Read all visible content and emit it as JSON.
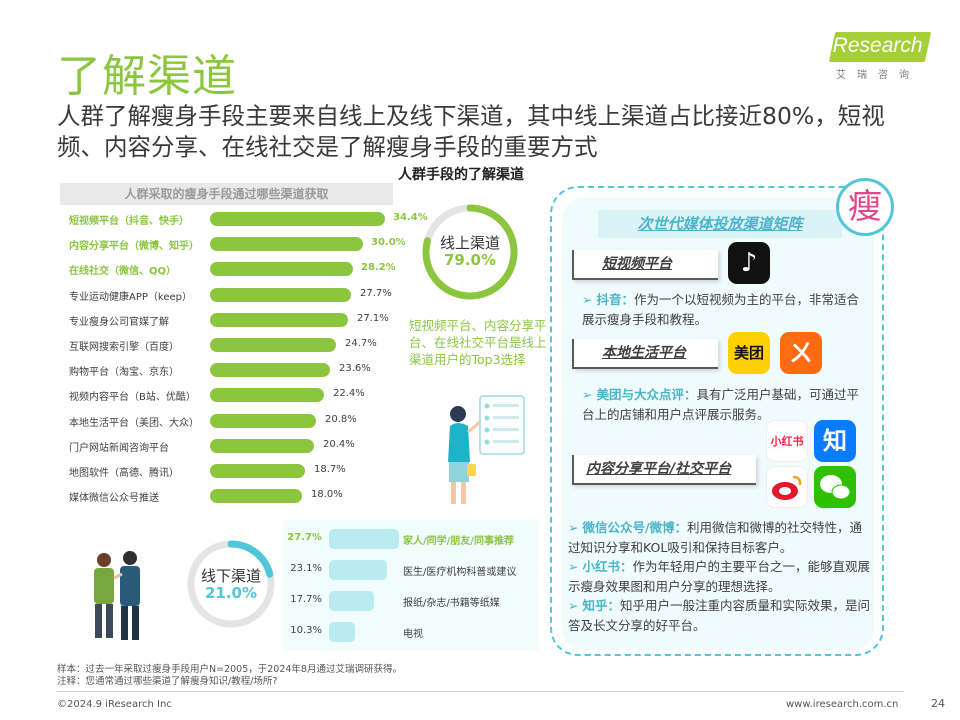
{
  "title": "了解渠道",
  "subtitle": "人群了解瘦身手段主要来自线上及线下渠道，其中线上渠道占比接近80%，短视频、内容分享、在线社交是了解瘦身手段的重要方式",
  "logo": {
    "text": "iResearch",
    "cn": "艾瑞咨询"
  },
  "chart_data": [
    {
      "type": "bar",
      "title": "人群采取的瘦身手段通过哪些渠道获取",
      "categories": [
        "短视频平台（抖音、快手）",
        "内容分享平台（微博、知乎）",
        "在线社交（微信、QQ）",
        "专业运动健康APP（keep）",
        "专业瘦身公司官媒了解",
        "互联网搜索引擎（百度）",
        "购物平台（淘宝、京东）",
        "视频内容平台（B站、优酷）",
        "本地生活平台（美团、大众）",
        "门户网站新闻咨询平台",
        "地图软件（高德、腾讯）",
        "媒体微信公众号推送"
      ],
      "values": [
        34.4,
        30.0,
        28.2,
        27.7,
        27.1,
        24.7,
        23.6,
        22.4,
        20.8,
        20.4,
        18.7,
        18.0
      ],
      "value_labels": [
        "34.4%",
        "30.0%",
        "28.2%",
        "27.7%",
        "27.1%",
        "24.7%",
        "23.6%",
        "22.4%",
        "20.8%",
        "20.4%",
        "18.7%",
        "18.0%"
      ],
      "highlighted": [
        0,
        1,
        2
      ],
      "unit": "%",
      "bar_color": "#8cc63f"
    },
    {
      "type": "bar",
      "categories": [
        "家人/同学/朋友/同事推荐",
        "医生/医疗机构科普或建议",
        "报纸/杂志/书籍等纸媒",
        "电视"
      ],
      "values": [
        27.7,
        23.1,
        17.7,
        10.3
      ],
      "value_labels": [
        "27.7%",
        "23.1%",
        "17.7%",
        "10.3%"
      ],
      "highlighted": [
        0
      ],
      "unit": "%",
      "bar_color": "#b9ebf0"
    },
    {
      "type": "pie",
      "title": "人群手段的了解渠道",
      "categories": [
        "线上渠道",
        "线下渠道"
      ],
      "values": [
        79.0,
        21.0
      ],
      "value_labels": [
        "79.0%",
        "21.0%"
      ]
    }
  ],
  "center": {
    "title": "人群手段的了解渠道",
    "online_label": "线上渠道",
    "online_pct": "79.0%",
    "offline_label": "线下渠道",
    "offline_pct": "21.0%",
    "note": "短视频平台、内容分享平台、在线社交平台是线上渠道用户的Top3选择"
  },
  "panel": {
    "title": "次世代媒体投放渠道矩阵",
    "seal": "瘦",
    "channels": [
      {
        "label": "短视频平台"
      },
      {
        "label": "本地生活平台"
      },
      {
        "label": "内容分享平台/社交平台"
      }
    ],
    "apps": {
      "douyin": "♪",
      "meituan": "美团",
      "dianping": "ㄨ",
      "xiaohongshu": "小红书",
      "zhihu": "知"
    },
    "descriptions": [
      {
        "kw": "抖音：",
        "text": "作为一个以短视频为主的平台，非常适合展示瘦身手段和教程。"
      },
      {
        "kw": "美团与大众点评：",
        "text": "具有广泛用户基础，可通过平台上的店铺和用户点评展示服务。"
      },
      {
        "kw": "微信公众号/微博：",
        "text": "利用微信和微博的社交特性，通过知识分享和KOL吸引和保持目标客户。"
      },
      {
        "kw": "小红书：",
        "text": "作为年轻用户的主要平台之一，能够直观展示瘦身效果图和用户分享的理想选择。"
      },
      {
        "kw": "知乎：",
        "text": "知乎用户一般注重内容质量和实际效果，是问答及长文分享的好平台。"
      }
    ],
    "arrow": "➢"
  },
  "footnote": {
    "line1": "样本：过去一年采取过瘦身手段用户N=2005，于2024年8月通过艾瑞调研获得。",
    "line2": "注释：您通常通过哪些渠道了解瘦身知识/教程/场所?"
  },
  "footer": {
    "left": "©2024.9 iResearch Inc",
    "right": "www.iresearch.com.cn",
    "page": "24"
  },
  "colors": {
    "green": "#8cc63f",
    "cyan": "#4fc7d8",
    "light_cyan": "#b9ebf0",
    "pink": "#e0478b"
  }
}
